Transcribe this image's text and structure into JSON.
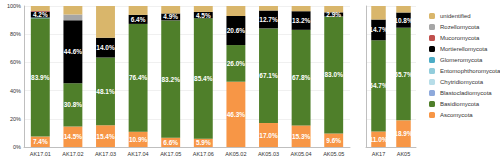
{
  "chart_data": [
    {
      "type": "bar",
      "stacked": true,
      "data_labels": true,
      "grid": true,
      "legend": "right",
      "categories": [
        "AK17.01",
        "AK17.02",
        "AK17.03",
        "AK17.04",
        "AK17.05",
        "AK17.06",
        "AK05.02",
        "AK05.03",
        "AK05.04",
        "AK05.05"
      ],
      "ylim": [
        0,
        100
      ],
      "yticks": [
        {
          "value": 0,
          "label": "0%"
        },
        {
          "value": 20,
          "label": "20%"
        },
        {
          "value": 40,
          "label": "40%"
        },
        {
          "value": 60,
          "label": "60%"
        },
        {
          "value": 80,
          "label": "80%"
        },
        {
          "value": 100,
          "label": "100%"
        }
      ],
      "series": [
        {
          "name": "Ascomycota",
          "color": "#f79646",
          "values": [
            7.4,
            14.5,
            15.4,
            10.9,
            6.6,
            5.9,
            46.3,
            17.0,
            15.3,
            9.6
          ],
          "value_labels": [
            "7.4%",
            "14.5%",
            "15.4%",
            "10.9%",
            "6.6%",
            "5.9%",
            "46.3%",
            "17.0%",
            "15.3%",
            "9.6%"
          ]
        },
        {
          "name": "Basidiomycota",
          "color": "#4f7f2a",
          "values": [
            83.9,
            30.8,
            48.1,
            76.4,
            83.2,
            85.4,
            26.0,
            67.1,
            67.8,
            83.0
          ],
          "value_labels": [
            "83.9%",
            "30.8%",
            "48.1%",
            "76.4%",
            "83.2%",
            "85.4%",
            "26.0%",
            "67.1%",
            "67.8%",
            "83.0%"
          ]
        },
        {
          "name": "Blastocladiomycota",
          "color": "#8ea9db",
          "values": [
            0,
            0,
            0,
            0,
            0,
            0,
            0,
            0,
            0,
            0
          ]
        },
        {
          "name": "Chytridiomycota",
          "color": "#b7dde8",
          "values": [
            0,
            0,
            0,
            0,
            0,
            0,
            0,
            0,
            0,
            0
          ]
        },
        {
          "name": "Entomophthoromycota",
          "color": "#92cddc",
          "values": [
            0,
            0,
            0,
            0,
            0,
            0,
            0,
            0,
            0,
            0
          ]
        },
        {
          "name": "Glomeromycota",
          "color": "#4bacc6",
          "values": [
            0.5,
            0,
            0,
            0,
            0,
            0,
            0,
            0,
            0,
            0
          ]
        },
        {
          "name": "Mortierellomycota",
          "color": "#000000",
          "values": [
            4.2,
            44.6,
            14.0,
            6.4,
            4.9,
            4.5,
            20.6,
            12.7,
            13.2,
            2.9
          ],
          "value_labels": [
            "4.2%",
            "44.6%",
            "14.0%",
            "6.4%",
            "4.9%",
            "4.5%",
            "20.6%",
            "12.7%",
            "13.2%",
            "2.9%"
          ]
        },
        {
          "name": "Mucoromycota",
          "color": "#c0504d",
          "values": [
            0.5,
            0,
            0,
            0,
            0,
            0,
            0,
            0,
            0,
            0
          ]
        },
        {
          "name": "Rozellomycota",
          "color": "#a6a6a6",
          "values": [
            0,
            4.0,
            0,
            0,
            0,
            0,
            0,
            0,
            0,
            0
          ]
        },
        {
          "name": "unidentified",
          "color": "#d9b66b",
          "values": [
            3.5,
            6.1,
            22.5,
            6.3,
            5.3,
            4.2,
            7.1,
            3.2,
            3.7,
            4.5
          ]
        }
      ]
    },
    {
      "type": "bar",
      "stacked": true,
      "data_labels": true,
      "grid": true,
      "tick_labels": "x",
      "categories": [
        "AK17",
        "AK05"
      ],
      "ylim": [
        0,
        100
      ],
      "yticks": [
        0,
        20,
        40,
        60,
        80,
        100
      ],
      "series": [
        {
          "name": "Ascomycota",
          "color": "#f79646",
          "values": [
            11.0,
            18.9
          ],
          "value_labels": [
            "11.0%",
            "18.9%"
          ]
        },
        {
          "name": "Basidiomycota",
          "color": "#4f7f2a",
          "values": [
            64.7,
            65.7
          ],
          "value_labels": [
            "64.7%",
            "65.7%"
          ]
        },
        {
          "name": "Blastocladiomycota",
          "color": "#8ea9db",
          "values": [
            0,
            0
          ]
        },
        {
          "name": "Chytridiomycota",
          "color": "#b7dde8",
          "values": [
            0,
            0
          ]
        },
        {
          "name": "Entomophthoromycota",
          "color": "#92cddc",
          "values": [
            0,
            0
          ]
        },
        {
          "name": "Glomeromycota",
          "color": "#4bacc6",
          "values": [
            0,
            0
          ]
        },
        {
          "name": "Mortierellomycota",
          "color": "#000000",
          "values": [
            14.7,
            10.8
          ],
          "value_labels": [
            "14.7%",
            "10.8%"
          ]
        },
        {
          "name": "Mucoromycota",
          "color": "#c0504d",
          "values": [
            0,
            0
          ]
        },
        {
          "name": "Rozellomycota",
          "color": "#a6a6a6",
          "values": [
            0,
            0
          ]
        },
        {
          "name": "unidentified",
          "color": "#d9b66b",
          "values": [
            9.6,
            4.6
          ]
        }
      ]
    }
  ]
}
